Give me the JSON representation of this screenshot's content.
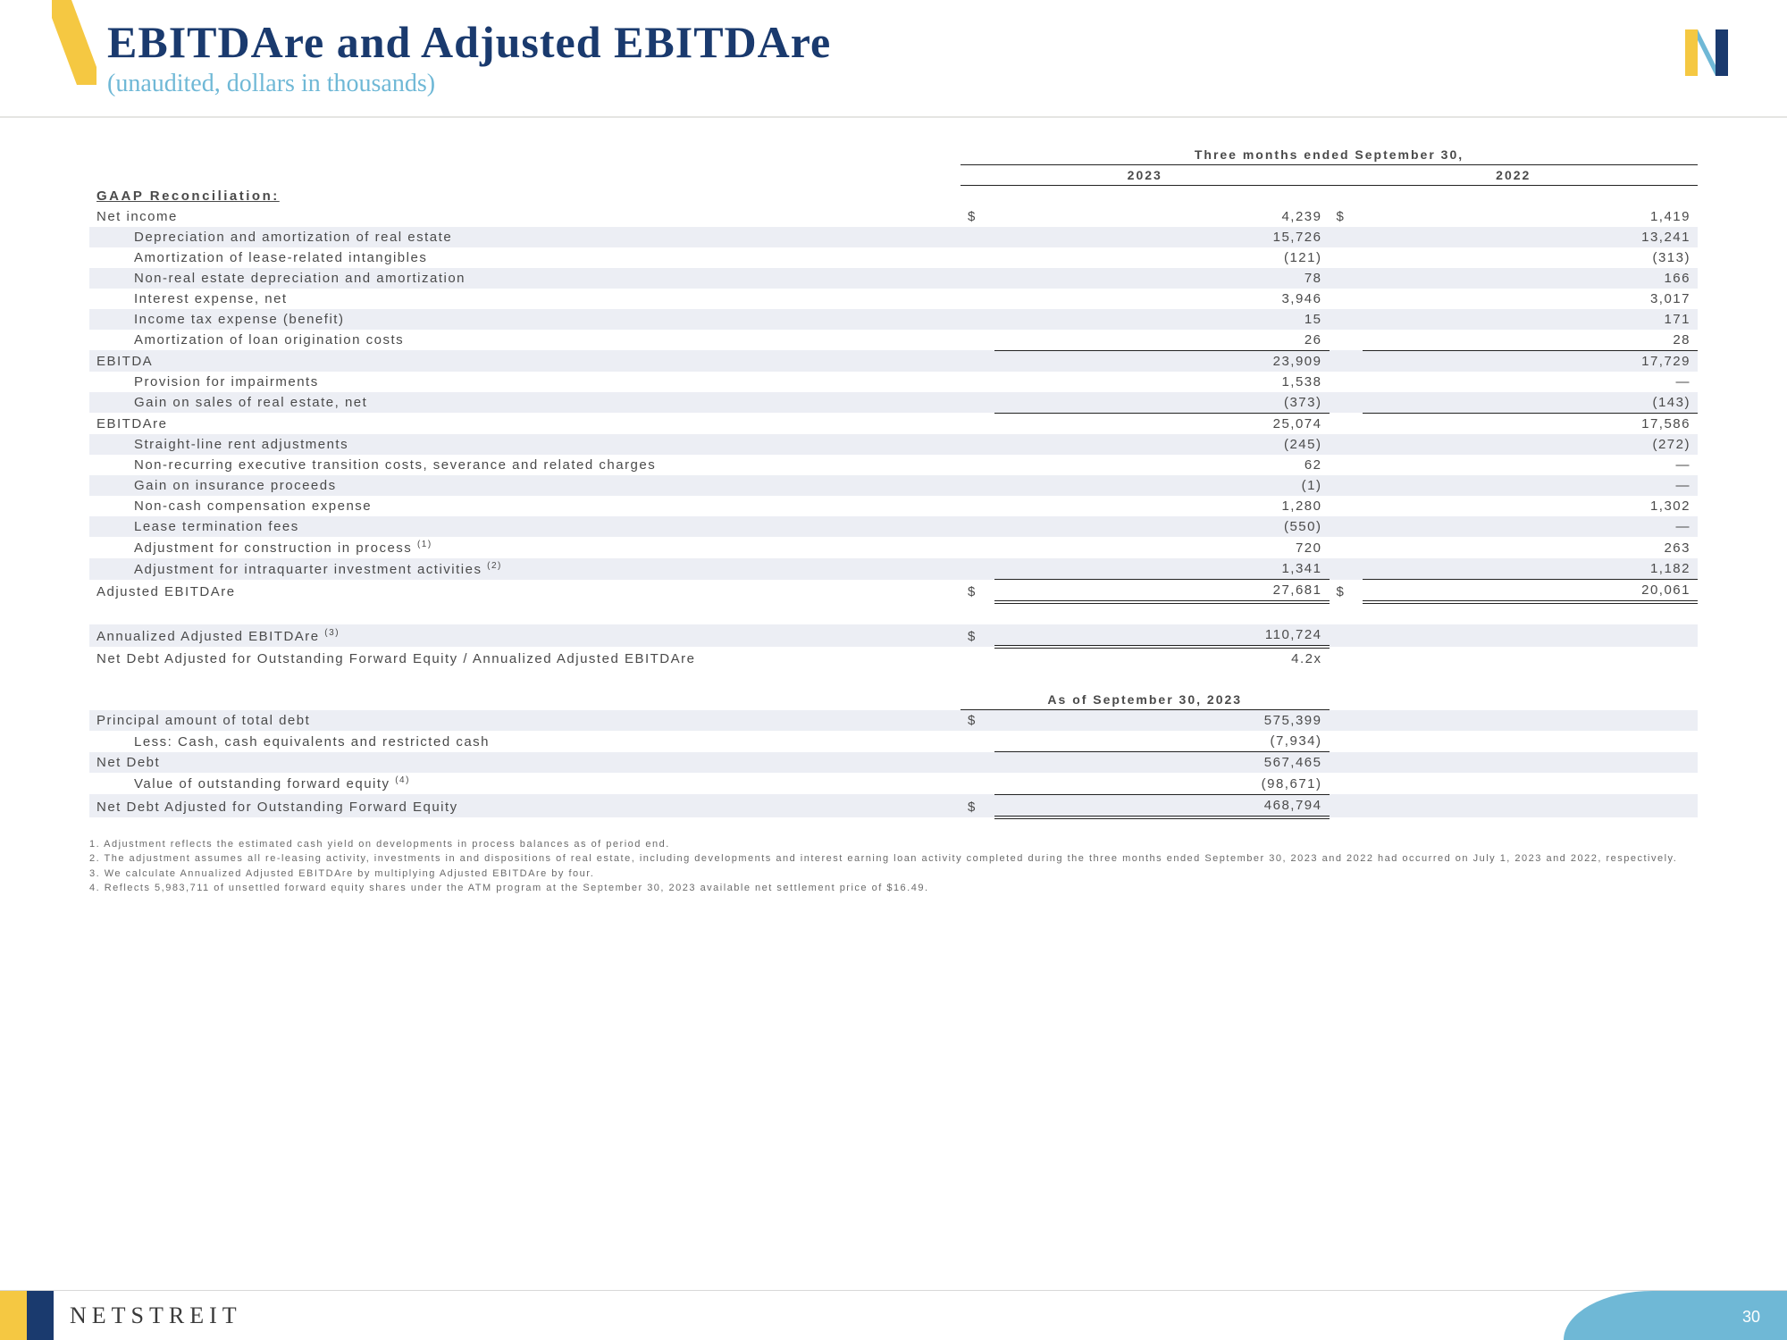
{
  "header": {
    "title": "EBITDAre and Adjusted EBITDAre",
    "subtitle": "(unaudited, dollars in thousands)"
  },
  "table": {
    "period_label": "Three months ended September 30,",
    "years": [
      "2023",
      "2022"
    ],
    "section1_heading": "GAAP Reconciliation:",
    "rows_block1": [
      {
        "label": "Net income",
        "indent": 0,
        "cur": "$",
        "v1": "4,239",
        "cur2": "$",
        "v2": "1,419",
        "shade": false
      },
      {
        "label": "Depreciation and amortization of real estate",
        "indent": 1,
        "v1": "15,726",
        "v2": "13,241",
        "shade": true
      },
      {
        "label": "Amortization of lease-related intangibles",
        "indent": 1,
        "v1": "(121)",
        "v2": "(313)",
        "shade": false
      },
      {
        "label": "Non-real estate depreciation and amortization",
        "indent": 1,
        "v1": "78",
        "v2": "166",
        "shade": true
      },
      {
        "label": "Interest expense, net",
        "indent": 1,
        "v1": "3,946",
        "v2": "3,017",
        "shade": false
      },
      {
        "label": "Income tax expense (benefit)",
        "indent": 1,
        "v1": "15",
        "v2": "171",
        "shade": true
      },
      {
        "label": "Amortization of loan origination costs",
        "indent": 1,
        "v1": "26",
        "v2": "28",
        "shade": false,
        "underline": true
      }
    ],
    "ebitda_row": {
      "label": "EBITDA",
      "v1": "23,909",
      "v2": "17,729",
      "shade": true
    },
    "rows_block2": [
      {
        "label": "Provision for impairments",
        "indent": 1,
        "v1": "1,538",
        "v2": "—",
        "shade": false
      },
      {
        "label": "Gain on sales of real estate, net",
        "indent": 1,
        "v1": "(373)",
        "v2": "(143)",
        "shade": true,
        "underline": true
      }
    ],
    "ebitdare_row": {
      "label": "EBITDAre",
      "v1": "25,074",
      "v2": "17,586",
      "shade": false
    },
    "rows_block3": [
      {
        "label": "Straight-line rent adjustments",
        "indent": 1,
        "v1": "(245)",
        "v2": "(272)",
        "shade": true
      },
      {
        "label": "Non-recurring executive transition costs, severance and related charges",
        "indent": 1,
        "v1": "62",
        "v2": "—",
        "shade": false
      },
      {
        "label": "Gain on insurance proceeds",
        "indent": 1,
        "v1": "(1)",
        "v2": "—",
        "shade": true
      },
      {
        "label": "Non-cash compensation expense",
        "indent": 1,
        "v1": "1,280",
        "v2": "1,302",
        "shade": false
      },
      {
        "label": "Lease termination fees",
        "indent": 1,
        "v1": "(550)",
        "v2": "—",
        "shade": true
      },
      {
        "label": "Adjustment for construction in process ",
        "sup": "(1)",
        "indent": 1,
        "v1": "720",
        "v2": "263",
        "shade": false
      },
      {
        "label": "Adjustment for intraquarter investment activities ",
        "sup": "(2)",
        "indent": 1,
        "v1": "1,341",
        "v2": "1,182",
        "shade": true,
        "underline": true
      }
    ],
    "adj_ebitdare_row": {
      "label": "Adjusted EBITDAre",
      "cur": "$",
      "v1": "27,681",
      "cur2": "$",
      "v2": "20,061",
      "shade": false,
      "dbl": true
    },
    "rows_block4": [
      {
        "label": "Annualized Adjusted EBITDAre ",
        "sup": "(3)",
        "cur": "$",
        "v1": "110,724",
        "shade": true,
        "dbl": true
      },
      {
        "label": "Net Debt Adjusted for Outstanding Forward Equity / Annualized Adjusted EBITDAre",
        "v1": "4.2x",
        "shade": false
      }
    ],
    "asof_label": "As of September 30, 2023",
    "rows_block5": [
      {
        "label": "Principal amount of total debt",
        "cur": "$",
        "v1": "575,399",
        "shade": true
      },
      {
        "label": "Less: Cash, cash equivalents and restricted cash",
        "indent": 1,
        "v1": "(7,934)",
        "shade": false,
        "underline": true
      },
      {
        "label": "Net Debt",
        "v1": "567,465",
        "shade": true
      },
      {
        "label": "Value of outstanding forward equity ",
        "sup": "(4)",
        "indent": 1,
        "v1": "(98,671)",
        "shade": false,
        "underline": true
      },
      {
        "label": "Net Debt Adjusted for Outstanding Forward Equity",
        "cur": "$",
        "v1": "468,794",
        "shade": true,
        "dbl": true
      }
    ]
  },
  "footnotes": [
    "1.  Adjustment reflects the estimated cash yield on developments in process balances as of period end.",
    "2.  The adjustment assumes all re-leasing activity, investments in and dispositions of real estate, including developments and interest earning loan activity completed during the three months ended September 30, 2023 and 2022 had occurred on July 1, 2023 and 2022, respectively.",
    "3.  We calculate Annualized Adjusted EBITDAre by multiplying Adjusted EBITDAre by four.",
    "4.  Reflects 5,983,711 of unsettled forward equity shares under the ATM program at the September 30, 2023 available net settlement price of $16.49."
  ],
  "footer": {
    "company": "NETSTREIT",
    "page": "30"
  }
}
